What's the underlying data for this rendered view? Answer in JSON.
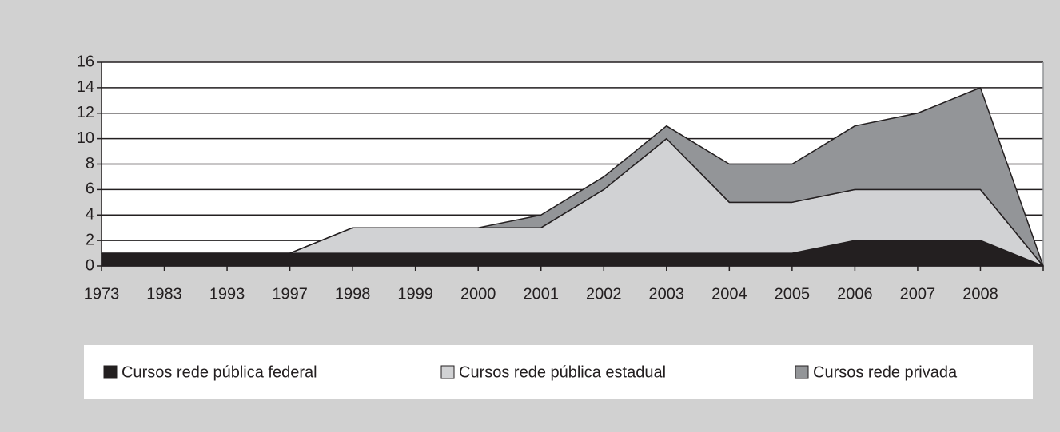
{
  "chart_data": {
    "type": "stacked_area",
    "categories": [
      "1973",
      "1983",
      "1993",
      "1997",
      "1998",
      "1999",
      "2000",
      "2001",
      "2002",
      "2003",
      "2004",
      "2005",
      "2006",
      "2007",
      "2008",
      null
    ],
    "series": [
      {
        "name": "Cursos rede pública federal",
        "color": "#231f20",
        "values": [
          1,
          1,
          1,
          1,
          1,
          1,
          1,
          1,
          1,
          1,
          1,
          1,
          2,
          2,
          2,
          0
        ]
      },
      {
        "name": "Cursos rede pública estadual",
        "color": "#d1d2d4",
        "values": [
          0,
          0,
          0,
          0,
          2,
          2,
          2,
          2,
          5,
          9,
          4,
          4,
          4,
          4,
          4,
          0
        ]
      },
      {
        "name": "Cursos rede privada",
        "color": "#939598",
        "values": [
          0,
          0,
          0,
          0,
          0,
          0,
          0,
          1,
          1,
          1,
          3,
          3,
          5,
          6,
          8,
          0
        ]
      }
    ],
    "ylim": [
      0,
      16
    ],
    "yticks": [
      0,
      2,
      4,
      6,
      8,
      10,
      12,
      14,
      16
    ],
    "grid": true,
    "legend": "bottom"
  }
}
